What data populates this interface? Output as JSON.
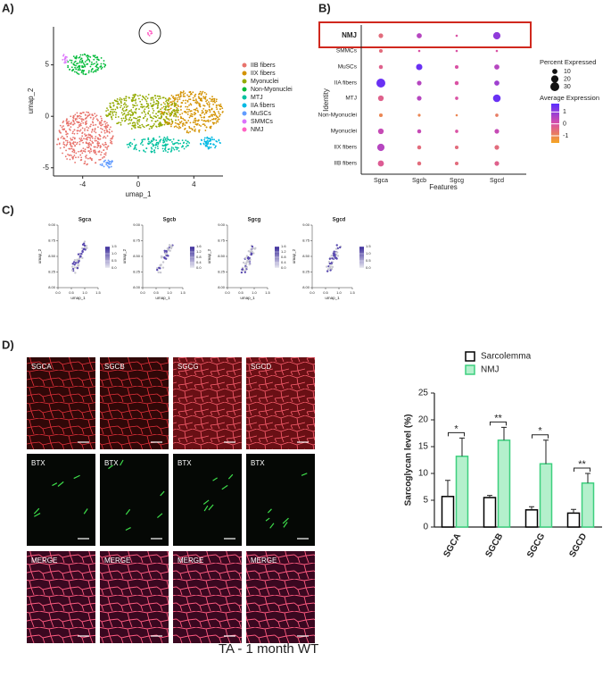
{
  "panel_labels": [
    "A)",
    "B)",
    "C)",
    "D)"
  ],
  "umap": {
    "type": "scatter",
    "xlabel": "umap_1",
    "ylabel": "umap_2",
    "xlim": [
      -6.1,
      6.1
    ],
    "ylim": [
      -5.8,
      8.7
    ],
    "xticks": [
      -4,
      0,
      4
    ],
    "yticks": [
      -5,
      0,
      5
    ],
    "legend": [
      {
        "name": "IIB fibers",
        "color": "#e8736c"
      },
      {
        "name": "IIX fibers",
        "color": "#d39200"
      },
      {
        "name": "Myonuclei",
        "color": "#93aa00"
      },
      {
        "name": "Non-Myonuclei",
        "color": "#00ba38"
      },
      {
        "name": "MTJ",
        "color": "#00c19f"
      },
      {
        "name": "IIA fibers",
        "color": "#00b9e3"
      },
      {
        "name": "MuSCs",
        "color": "#619cff"
      },
      {
        "name": "SMMCs",
        "color": "#db72fb"
      },
      {
        "name": "NMJ",
        "color": "#ff61c3"
      }
    ]
  },
  "dotplot": {
    "type": "dot",
    "xlabel": "Features",
    "ylabel": "Identity",
    "features": [
      "Sgca",
      "Sgcb",
      "Sgcg",
      "Sgcd"
    ],
    "identities": [
      "NMJ",
      "SMMCs",
      "MuSCs",
      "IIA fibers",
      "MTJ",
      "Non-Myonuclei",
      "Myonuclei",
      "IIX fibers",
      "IIB fibers"
    ],
    "percent": [
      [
        8,
        10,
        2,
        20
      ],
      [
        5,
        2,
        2,
        2
      ],
      [
        6,
        15,
        5,
        10
      ],
      [
        30,
        8,
        6,
        10
      ],
      [
        12,
        8,
        4,
        22
      ],
      [
        5,
        3,
        2,
        4
      ],
      [
        12,
        6,
        4,
        8
      ],
      [
        20,
        6,
        5,
        8
      ],
      [
        14,
        6,
        5,
        8
      ]
    ],
    "average": [
      [
        -0.5,
        0.5,
        0,
        1
      ],
      [
        -0.5,
        0,
        0,
        0
      ],
      [
        -0.3,
        1.5,
        0,
        0.5
      ],
      [
        1.5,
        0.5,
        0,
        0.8
      ],
      [
        -0.3,
        0.5,
        0,
        1.5
      ],
      [
        -1,
        -1,
        -1,
        -0.8
      ],
      [
        0.3,
        0.3,
        0,
        0.3
      ],
      [
        0.5,
        -0.5,
        -0.5,
        -0.5
      ],
      [
        -0.2,
        -0.5,
        -0.5,
        -0.3
      ]
    ],
    "size_title": "Percent Expressed",
    "size_ticks": [
      10,
      20,
      30
    ],
    "color_title": "Average Expression",
    "color_lim": [
      -1.6,
      1.7
    ],
    "color_ticks": [
      1,
      0,
      -1
    ]
  },
  "feature_plots": {
    "xlabel": "umap_1",
    "ylabel": "umap_2",
    "xticks": [
      {
        "value": 0,
        "label": "0.0"
      },
      0.5,
      {
        "value": 1,
        "label": "1.0"
      },
      1.5
    ],
    "yticks": [
      {
        "value": 8,
        "label": "8.00"
      },
      8.25,
      {
        "value": 8.5,
        "label": "8.50"
      },
      8.75,
      {
        "value": 9,
        "label": "9.00"
      }
    ],
    "panels": [
      {
        "title": "Sgca",
        "scale": [
          1.5,
          {
            "value": 1,
            "label": "1.0"
          },
          0.5,
          {
            "value": 0,
            "label": "0.0"
          }
        ]
      },
      {
        "title": "Sgcb",
        "scale": [
          1.6,
          1.2,
          0.8,
          0.4,
          {
            "value": 0,
            "label": "0.0"
          }
        ]
      },
      {
        "title": "Sgcg",
        "scale": [
          1.6,
          1.2,
          0.8,
          0.4,
          {
            "value": 0,
            "label": "0.0"
          }
        ]
      },
      {
        "title": "Sgcd",
        "scale": [
          1.5,
          {
            "value": 1,
            "label": "1.0"
          },
          0.5,
          {
            "value": 0,
            "label": "0.0"
          }
        ]
      }
    ]
  },
  "micrographs": {
    "rows": [
      [
        "SGCA",
        "SGCB",
        "SGCG",
        "SGCD"
      ],
      [
        "BTX",
        "BTX",
        "BTX",
        "BTX"
      ],
      [
        "MERGE",
        "MERGE",
        "MERGE",
        "MERGE"
      ]
    ],
    "caption": "TA -  1 month WT"
  },
  "chart_data": {
    "type": "bar",
    "ylabel": "Sarcoglycan level (%)",
    "categories": [
      "SGCA",
      "SGCB",
      "SGCG",
      "SGCD"
    ],
    "series": [
      {
        "name": "Sarcolemma",
        "color": "#ffffff",
        "stroke": "#000000",
        "values": [
          5.7,
          5.5,
          3.2,
          2.6
        ],
        "errors": [
          3,
          0.4,
          0.6,
          0.7
        ]
      },
      {
        "name": "NMJ",
        "color": "#b4f0cc",
        "stroke": "#3dcf7e",
        "values": [
          13.2,
          16.2,
          11.8,
          8.2
        ],
        "errors": [
          3.4,
          2.4,
          4.4,
          1.8
        ]
      }
    ],
    "significance": [
      "*",
      "**",
      "*",
      "**"
    ],
    "ylim": [
      0,
      25
    ],
    "yticks": [
      0,
      5,
      10,
      15,
      20,
      25
    ]
  }
}
